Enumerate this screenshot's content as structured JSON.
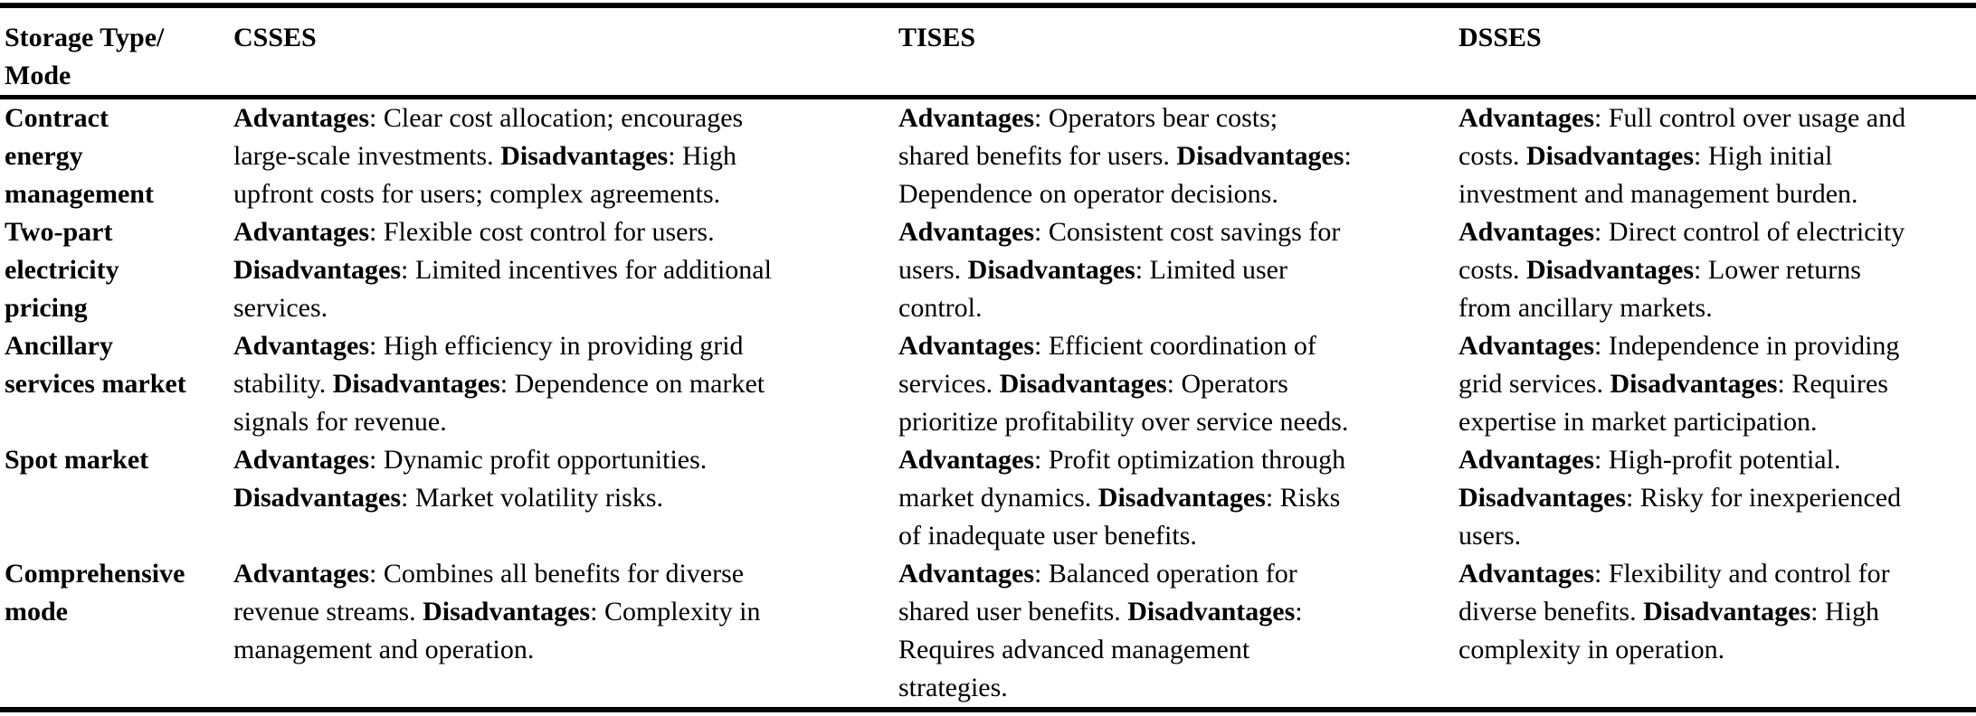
{
  "page": {
    "background_color": "#ffffff",
    "text_color": "#000000"
  },
  "table": {
    "bold_keywords": [
      "Advantages",
      "Disadvantages"
    ],
    "header": {
      "mode": "Storage Type/\nMode",
      "csses": "CSSES",
      "tises": "TISES",
      "dsses": "DSSES"
    },
    "rows": [
      {
        "mode": "Contract\nenergy\nmanagement",
        "csses": "Advantages: Clear cost allocation; encourages\nlarge-scale investments. Disadvantages: High\nupfront costs for users; complex agreements.",
        "tises": "Advantages: Operators bear costs;\nshared benefits for users. Disadvantages:\nDependence on operator decisions.",
        "dsses": "Advantages: Full control over usage and\ncosts. Disadvantages: High initial\ninvestment and management burden."
      },
      {
        "mode": "Two-part\nelectricity\npricing",
        "csses": "Advantages: Flexible cost control for users.\nDisadvantages: Limited incentives for additional\nservices.",
        "tises": "Advantages: Consistent cost savings for\nusers. Disadvantages: Limited user\ncontrol.",
        "dsses": "Advantages: Direct control of electricity\ncosts. Disadvantages: Lower returns\nfrom ancillary markets."
      },
      {
        "mode": "Ancillary\nservices market",
        "csses": "Advantages: High efficiency in providing grid\nstability. Disadvantages: Dependence on market\nsignals for revenue.",
        "tises": "Advantages: Efficient coordination of\nservices. Disadvantages: Operators\nprioritize profitability over service needs.",
        "dsses": "Advantages: Independence in providing\ngrid services. Disadvantages: Requires\nexpertise in market participation."
      },
      {
        "mode": "Spot market",
        "csses": "Advantages: Dynamic profit opportunities.\nDisadvantages: Market volatility risks.",
        "tises": "Advantages: Profit optimization through\nmarket dynamics. Disadvantages: Risks\nof inadequate user benefits.",
        "dsses": "Advantages: High-profit potential.\nDisadvantages: Risky for inexperienced\nusers."
      },
      {
        "mode": "Comprehensive\nmode",
        "csses": "Advantages: Combines all benefits for diverse\nrevenue streams. Disadvantages: Complexity in\nmanagement and operation.",
        "tises": "Advantages: Balanced operation for\nshared user benefits. Disadvantages:\nRequires advanced management\nstrategies.",
        "dsses": "Advantages: Flexibility and control for\ndiverse benefits. Disadvantages: High\ncomplexity in operation."
      }
    ]
  }
}
